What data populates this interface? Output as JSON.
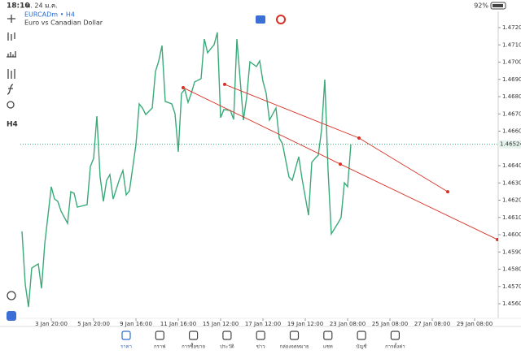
{
  "status_bar": {
    "time": "18:10",
    "date": "พ. 24 ม.ค.",
    "battery": "92%"
  },
  "chart_header": {
    "symbol": "EURCADm • H4",
    "description": "Euro vs Canadian Dollar"
  },
  "toolbar": {
    "timeframe": "H4"
  },
  "chart_data": {
    "type": "line",
    "color": "#3aaa7a",
    "x": [
      0,
      1,
      2,
      3,
      5,
      6,
      7,
      9,
      10,
      11,
      12,
      14,
      15,
      16,
      17,
      20,
      21,
      22,
      23,
      24,
      25,
      26,
      27,
      28,
      30,
      31,
      32,
      33,
      35,
      36,
      37,
      38,
      40,
      41,
      42,
      43,
      44,
      46,
      47,
      48,
      49,
      50,
      51,
      52,
      53,
      55,
      56,
      57,
      58,
      59,
      60,
      61,
      62,
      64,
      65,
      66,
      68,
      69,
      70,
      72,
      73,
      74,
      75,
      76,
      78,
      79,
      80,
      82,
      83,
      85,
      86,
      88,
      89,
      90,
      91,
      92,
      93,
      94,
      95,
      97,
      98,
      99,
      100,
      101
    ],
    "values": [
      1.46019,
      1.45713,
      1.45581,
      1.45807,
      1.45831,
      1.45689,
      1.45948,
      1.46278,
      1.46207,
      1.46193,
      1.46136,
      1.46066,
      1.46249,
      1.4624,
      1.4616,
      1.46174,
      1.46395,
      1.46442,
      1.46687,
      1.46334,
      1.46193,
      1.46315,
      1.46348,
      1.46207,
      1.46325,
      1.46372,
      1.46231,
      1.46254,
      1.46522,
      1.46758,
      1.46734,
      1.46696,
      1.46734,
      1.46946,
      1.47007,
      1.47096,
      1.46772,
      1.46758,
      1.46701,
      1.4648,
      1.46819,
      1.46842,
      1.46767,
      1.46819,
      1.46885,
      1.46904,
      1.47134,
      1.47054,
      1.47078,
      1.47101,
      1.47172,
      1.46678,
      1.46725,
      1.4672,
      1.46668,
      1.47134,
      1.46664,
      1.46795,
      1.47002,
      1.46974,
      1.47007,
      1.46889,
      1.46819,
      1.46664,
      1.46734,
      1.4656,
      1.46527,
      1.46334,
      1.46315,
      1.46452,
      1.46325,
      1.46113,
      1.46419,
      1.46442,
      1.46461,
      1.46607,
      1.46899,
      1.46372,
      1.46005,
      1.46066,
      1.46099,
      1.46301,
      1.46278,
      1.46522
    ],
    "xlim": [
      0,
      146
    ],
    "xticks": [
      {
        "value": 9,
        "label": "3 Jan 20:00"
      },
      {
        "value": 22,
        "label": "5 Jan 20:00"
      },
      {
        "value": 35,
        "label": "9 Jan 16:00"
      },
      {
        "value": 48,
        "label": "11 Jan 16:00"
      },
      {
        "value": 61,
        "label": "15 Jan 12:00"
      },
      {
        "value": 74,
        "label": "17 Jan 12:00"
      },
      {
        "value": 87,
        "label": "19 Jan 12:00"
      },
      {
        "value": 100,
        "label": "23 Jan 08:00"
      },
      {
        "value": 113,
        "label": "25 Jan 08:00"
      },
      {
        "value": 126,
        "label": "27 Jan 08:00"
      },
      {
        "value": 139,
        "label": "29 Jan 08:00"
      }
    ],
    "ylim": [
      1.456,
      1.472
    ],
    "yticks": [
      {
        "value": 1.472,
        "label": "1.47200"
      },
      {
        "value": 1.471,
        "label": "1.47100"
      },
      {
        "value": 1.47,
        "label": "1.47000"
      },
      {
        "value": 1.469,
        "label": "1.46900"
      },
      {
        "value": 1.468,
        "label": "1.46800"
      },
      {
        "value": 1.467,
        "label": "1.46700"
      },
      {
        "value": 1.466,
        "label": "1.46600"
      },
      {
        "value": 1.464,
        "label": "1.46400"
      },
      {
        "value": 1.463,
        "label": "1.46300"
      },
      {
        "value": 1.462,
        "label": "1.46200"
      },
      {
        "value": 1.461,
        "label": "1.46100"
      },
      {
        "value": 1.46,
        "label": "1.46000"
      },
      {
        "value": 1.459,
        "label": "1.45900"
      },
      {
        "value": 1.458,
        "label": "1.45800"
      },
      {
        "value": 1.457,
        "label": "1.45700"
      },
      {
        "value": 1.456,
        "label": "1.45600"
      }
    ],
    "last_price": 1.46524,
    "trendlines": [
      {
        "color": "#d93025",
        "x": [
          62.25,
          103.5,
          130.75
        ],
        "y": [
          1.46871,
          1.4656,
          1.46249
        ]
      },
      {
        "color": "#d93025",
        "x": [
          49.5,
          97.75,
          146
        ],
        "y": [
          1.46852,
          1.46409,
          1.45972
        ]
      }
    ]
  },
  "bottom_nav": {
    "active": 0,
    "items": [
      "ราคา",
      "กราฟ",
      "การซื้อขาย",
      "ประวัติ",
      "ข่าว",
      "กล่องจดหมาย",
      "แชท",
      "บัญชี",
      "การตั้งค่า"
    ]
  }
}
